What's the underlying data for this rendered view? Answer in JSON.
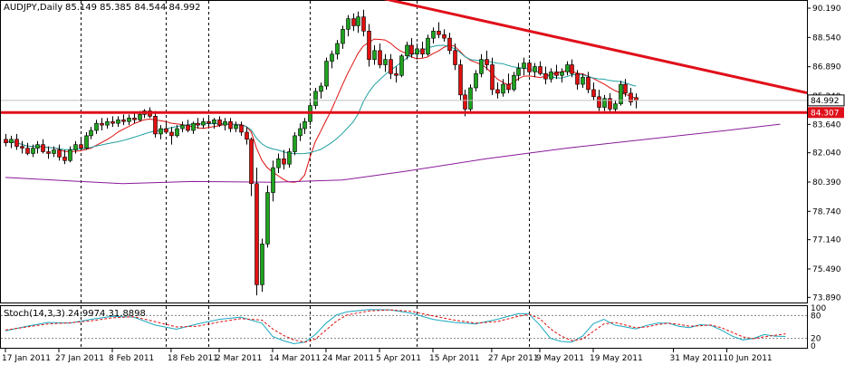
{
  "window": {
    "symbol_label": "AUDJPY,Daily",
    "ohlc_label": "85.149 85.385 84.544 84.992",
    "stoch_label": "Stoch(14,3,3) 24.9974 31.8898"
  },
  "colors": {
    "bull": "#1fa31f",
    "bear": "#e01010",
    "ma_fast": "#e01010",
    "ma_mid": "#20a0a0",
    "ma_slow": "#8a1a9a",
    "trend": "#e0101a",
    "stoch_main": "#1aa8c0",
    "stoch_signal": "#e01010"
  },
  "chart_data": {
    "type": "candlestick",
    "title": "AUDJPY,Daily",
    "ylim": [
      73.6,
      90.6
    ],
    "y_ticks": [
      "90.190",
      "88.540",
      "86.890",
      "85.240",
      "83.640",
      "82.040",
      "80.390",
      "78.740",
      "77.140",
      "75.490",
      "73.890"
    ],
    "x_labels": [
      "17 Jan 2011",
      "27 Jan 2011",
      "8 Feb 2011",
      "18 Feb 2011",
      "2 Mar 2011",
      "14 Mar 2011",
      "24 Mar 2011",
      "5 Apr 2011",
      "15 Apr 2011",
      "27 Apr 2011",
      "9 May 2011",
      "19 May 2011",
      "31 May 2011",
      "10 Jun 2011"
    ],
    "period_separators": [
      "2011-01-26",
      "2011-02-17",
      "2011-03-01",
      "2011-03-28",
      "2011-04-27",
      "2011-05-30"
    ],
    "last_price": "84.992",
    "horizontal_level": {
      "value": 84.307,
      "label": "84.307"
    },
    "trendline": {
      "from": {
        "index": 70,
        "value": 90.78
      },
      "to": {
        "index": 145,
        "value": 85.75
      }
    },
    "ma_slow": [
      [
        0,
        80.65
      ],
      [
        12,
        80.45
      ],
      [
        22,
        80.3
      ],
      [
        35,
        80.42
      ],
      [
        50,
        80.38
      ],
      [
        63,
        80.5
      ],
      [
        75,
        81.0
      ],
      [
        90,
        81.7
      ],
      [
        105,
        82.3
      ],
      [
        120,
        82.8
      ],
      [
        135,
        83.3
      ],
      [
        145,
        83.65
      ]
    ],
    "candles": [
      {
        "o": 82.8,
        "h": 83.1,
        "l": 82.4,
        "c": 82.6
      },
      {
        "o": 82.6,
        "h": 83.0,
        "l": 82.3,
        "c": 82.8
      },
      {
        "o": 82.8,
        "h": 83.1,
        "l": 82.2,
        "c": 82.4
      },
      {
        "o": 82.4,
        "h": 82.7,
        "l": 82.0,
        "c": 82.3
      },
      {
        "o": 82.3,
        "h": 82.6,
        "l": 81.9,
        "c": 82.0
      },
      {
        "o": 82.0,
        "h": 82.5,
        "l": 81.8,
        "c": 82.3
      },
      {
        "o": 82.3,
        "h": 82.7,
        "l": 82.0,
        "c": 82.5
      },
      {
        "o": 82.5,
        "h": 82.8,
        "l": 82.0,
        "c": 82.1
      },
      {
        "o": 82.1,
        "h": 82.4,
        "l": 81.7,
        "c": 82.0
      },
      {
        "o": 82.0,
        "h": 82.4,
        "l": 81.8,
        "c": 82.2
      },
      {
        "o": 82.2,
        "h": 82.5,
        "l": 81.6,
        "c": 81.8
      },
      {
        "o": 81.8,
        "h": 82.2,
        "l": 81.4,
        "c": 81.6
      },
      {
        "o": 81.6,
        "h": 82.4,
        "l": 81.5,
        "c": 82.2
      },
      {
        "o": 82.2,
        "h": 82.7,
        "l": 82.0,
        "c": 82.5
      },
      {
        "o": 82.5,
        "h": 82.9,
        "l": 82.2,
        "c": 82.3
      },
      {
        "o": 82.3,
        "h": 83.2,
        "l": 82.2,
        "c": 83.0
      },
      {
        "o": 83.0,
        "h": 83.5,
        "l": 82.8,
        "c": 83.3
      },
      {
        "o": 83.3,
        "h": 83.9,
        "l": 83.1,
        "c": 83.7
      },
      {
        "o": 83.7,
        "h": 84.0,
        "l": 83.3,
        "c": 83.6
      },
      {
        "o": 83.6,
        "h": 84.0,
        "l": 83.4,
        "c": 83.8
      },
      {
        "o": 83.8,
        "h": 84.1,
        "l": 83.5,
        "c": 83.7
      },
      {
        "o": 83.7,
        "h": 84.1,
        "l": 83.5,
        "c": 83.9
      },
      {
        "o": 83.9,
        "h": 84.2,
        "l": 83.6,
        "c": 83.8
      },
      {
        "o": 83.8,
        "h": 84.2,
        "l": 83.6,
        "c": 84.0
      },
      {
        "o": 84.0,
        "h": 84.3,
        "l": 83.7,
        "c": 83.9
      },
      {
        "o": 83.9,
        "h": 84.4,
        "l": 83.8,
        "c": 84.2
      },
      {
        "o": 84.2,
        "h": 84.5,
        "l": 84.0,
        "c": 84.4
      },
      {
        "o": 84.4,
        "h": 84.6,
        "l": 84.0,
        "c": 84.1
      },
      {
        "o": 84.1,
        "h": 84.4,
        "l": 82.9,
        "c": 83.1
      },
      {
        "o": 83.1,
        "h": 83.6,
        "l": 82.8,
        "c": 83.4
      },
      {
        "o": 83.4,
        "h": 83.8,
        "l": 83.1,
        "c": 83.2
      },
      {
        "o": 83.2,
        "h": 83.5,
        "l": 82.5,
        "c": 83.0
      },
      {
        "o": 83.0,
        "h": 83.6,
        "l": 82.9,
        "c": 83.4
      },
      {
        "o": 83.4,
        "h": 83.8,
        "l": 83.2,
        "c": 83.6
      },
      {
        "o": 83.6,
        "h": 83.9,
        "l": 83.2,
        "c": 83.3
      },
      {
        "o": 83.3,
        "h": 83.8,
        "l": 83.1,
        "c": 83.7
      },
      {
        "o": 83.7,
        "h": 84.0,
        "l": 83.4,
        "c": 83.6
      },
      {
        "o": 83.6,
        "h": 84.0,
        "l": 83.4,
        "c": 83.8
      },
      {
        "o": 83.8,
        "h": 84.1,
        "l": 83.5,
        "c": 83.7
      },
      {
        "o": 83.7,
        "h": 84.0,
        "l": 83.4,
        "c": 83.9
      },
      {
        "o": 83.9,
        "h": 84.1,
        "l": 83.5,
        "c": 83.6
      },
      {
        "o": 83.6,
        "h": 84.0,
        "l": 83.3,
        "c": 83.8
      },
      {
        "o": 83.8,
        "h": 84.0,
        "l": 83.2,
        "c": 83.4
      },
      {
        "o": 83.4,
        "h": 83.8,
        "l": 83.2,
        "c": 83.6
      },
      {
        "o": 83.6,
        "h": 83.8,
        "l": 83.0,
        "c": 83.2
      },
      {
        "o": 83.2,
        "h": 83.5,
        "l": 82.5,
        "c": 82.8
      },
      {
        "o": 82.8,
        "h": 82.9,
        "l": 79.6,
        "c": 80.3
      },
      {
        "o": 80.3,
        "h": 81.2,
        "l": 74.0,
        "c": 74.6
      },
      {
        "o": 74.6,
        "h": 77.2,
        "l": 74.2,
        "c": 76.9
      },
      {
        "o": 76.9,
        "h": 80.2,
        "l": 76.7,
        "c": 79.8
      },
      {
        "o": 79.8,
        "h": 81.6,
        "l": 79.3,
        "c": 81.2
      },
      {
        "o": 81.2,
        "h": 82.0,
        "l": 80.9,
        "c": 81.7
      },
      {
        "o": 81.7,
        "h": 82.2,
        "l": 81.1,
        "c": 81.4
      },
      {
        "o": 81.4,
        "h": 82.3,
        "l": 81.2,
        "c": 82.1
      },
      {
        "o": 82.1,
        "h": 83.2,
        "l": 81.9,
        "c": 83.0
      },
      {
        "o": 83.0,
        "h": 83.7,
        "l": 82.7,
        "c": 83.4
      },
      {
        "o": 83.4,
        "h": 84.0,
        "l": 83.1,
        "c": 83.8
      },
      {
        "o": 83.8,
        "h": 84.9,
        "l": 83.6,
        "c": 84.7
      },
      {
        "o": 84.7,
        "h": 85.7,
        "l": 84.5,
        "c": 85.5
      },
      {
        "o": 85.5,
        "h": 86.0,
        "l": 85.1,
        "c": 85.8
      },
      {
        "o": 85.8,
        "h": 87.4,
        "l": 85.6,
        "c": 87.2
      },
      {
        "o": 87.2,
        "h": 87.8,
        "l": 86.8,
        "c": 87.6
      },
      {
        "o": 87.6,
        "h": 88.4,
        "l": 87.3,
        "c": 88.2
      },
      {
        "o": 88.2,
        "h": 89.2,
        "l": 87.9,
        "c": 89.0
      },
      {
        "o": 89.0,
        "h": 89.8,
        "l": 88.6,
        "c": 89.6
      },
      {
        "o": 89.6,
        "h": 89.9,
        "l": 88.9,
        "c": 89.2
      },
      {
        "o": 89.2,
        "h": 90.0,
        "l": 88.8,
        "c": 89.7
      },
      {
        "o": 89.7,
        "h": 90.1,
        "l": 88.6,
        "c": 88.9
      },
      {
        "o": 88.9,
        "h": 89.3,
        "l": 86.9,
        "c": 87.3
      },
      {
        "o": 87.3,
        "h": 88.1,
        "l": 87.0,
        "c": 87.8
      },
      {
        "o": 87.8,
        "h": 88.2,
        "l": 86.8,
        "c": 87.0
      },
      {
        "o": 87.0,
        "h": 87.6,
        "l": 86.6,
        "c": 87.3
      },
      {
        "o": 87.3,
        "h": 87.6,
        "l": 86.2,
        "c": 86.5
      },
      {
        "o": 86.5,
        "h": 86.9,
        "l": 86.0,
        "c": 86.4
      },
      {
        "o": 86.4,
        "h": 87.6,
        "l": 86.3,
        "c": 87.5
      },
      {
        "o": 87.5,
        "h": 88.3,
        "l": 87.3,
        "c": 88.1
      },
      {
        "o": 88.1,
        "h": 88.5,
        "l": 87.4,
        "c": 87.6
      },
      {
        "o": 87.6,
        "h": 88.2,
        "l": 87.3,
        "c": 87.9
      },
      {
        "o": 87.9,
        "h": 88.3,
        "l": 87.4,
        "c": 87.6
      },
      {
        "o": 87.6,
        "h": 88.7,
        "l": 87.5,
        "c": 88.5
      },
      {
        "o": 88.5,
        "h": 89.1,
        "l": 88.2,
        "c": 88.9
      },
      {
        "o": 88.9,
        "h": 89.4,
        "l": 88.5,
        "c": 88.7
      },
      {
        "o": 88.7,
        "h": 89.0,
        "l": 88.3,
        "c": 88.5
      },
      {
        "o": 88.5,
        "h": 88.8,
        "l": 87.6,
        "c": 87.8
      },
      {
        "o": 87.8,
        "h": 88.2,
        "l": 86.7,
        "c": 87.0
      },
      {
        "o": 87.0,
        "h": 87.3,
        "l": 85.0,
        "c": 85.3
      },
      {
        "o": 85.3,
        "h": 85.6,
        "l": 84.1,
        "c": 84.5
      },
      {
        "o": 84.5,
        "h": 85.9,
        "l": 84.3,
        "c": 85.7
      },
      {
        "o": 85.7,
        "h": 86.7,
        "l": 85.5,
        "c": 86.5
      },
      {
        "o": 86.5,
        "h": 87.6,
        "l": 86.3,
        "c": 87.3
      },
      {
        "o": 87.3,
        "h": 87.8,
        "l": 86.7,
        "c": 87.0
      },
      {
        "o": 87.0,
        "h": 87.4,
        "l": 85.3,
        "c": 85.6
      },
      {
        "o": 85.6,
        "h": 86.0,
        "l": 85.1,
        "c": 85.4
      },
      {
        "o": 85.4,
        "h": 86.2,
        "l": 85.2,
        "c": 85.9
      },
      {
        "o": 85.9,
        "h": 86.5,
        "l": 85.4,
        "c": 85.6
      },
      {
        "o": 85.6,
        "h": 86.6,
        "l": 85.5,
        "c": 86.4
      },
      {
        "o": 86.4,
        "h": 87.1,
        "l": 86.1,
        "c": 86.8
      },
      {
        "o": 86.8,
        "h": 87.4,
        "l": 86.4,
        "c": 87.1
      },
      {
        "o": 87.1,
        "h": 87.3,
        "l": 86.4,
        "c": 86.6
      },
      {
        "o": 86.6,
        "h": 87.1,
        "l": 86.3,
        "c": 86.9
      },
      {
        "o": 86.9,
        "h": 87.2,
        "l": 86.4,
        "c": 86.5
      },
      {
        "o": 86.5,
        "h": 86.9,
        "l": 85.9,
        "c": 86.2
      },
      {
        "o": 86.2,
        "h": 86.8,
        "l": 86.0,
        "c": 86.6
      },
      {
        "o": 86.6,
        "h": 87.0,
        "l": 86.2,
        "c": 86.4
      },
      {
        "o": 86.4,
        "h": 86.8,
        "l": 86.0,
        "c": 86.6
      },
      {
        "o": 86.6,
        "h": 87.2,
        "l": 86.4,
        "c": 87.0
      },
      {
        "o": 87.0,
        "h": 87.3,
        "l": 86.3,
        "c": 86.5
      },
      {
        "o": 86.5,
        "h": 86.7,
        "l": 85.6,
        "c": 85.9
      },
      {
        "o": 85.9,
        "h": 86.5,
        "l": 85.7,
        "c": 86.3
      },
      {
        "o": 86.3,
        "h": 86.6,
        "l": 85.4,
        "c": 85.6
      },
      {
        "o": 85.6,
        "h": 86.0,
        "l": 85.0,
        "c": 85.2
      },
      {
        "o": 85.2,
        "h": 85.6,
        "l": 84.4,
        "c": 84.6
      },
      {
        "o": 84.6,
        "h": 85.3,
        "l": 84.4,
        "c": 85.1
      },
      {
        "o": 85.1,
        "h": 85.4,
        "l": 84.3,
        "c": 84.5
      },
      {
        "o": 84.5,
        "h": 85.0,
        "l": 84.3,
        "c": 84.8
      },
      {
        "o": 84.8,
        "h": 86.1,
        "l": 84.7,
        "c": 85.9
      },
      {
        "o": 85.9,
        "h": 86.2,
        "l": 85.2,
        "c": 85.4
      },
      {
        "o": 85.4,
        "h": 85.7,
        "l": 84.7,
        "c": 84.9
      },
      {
        "o": 85.149,
        "h": 85.385,
        "l": 84.544,
        "c": 84.992
      }
    ]
  },
  "stochastic": {
    "ylim": [
      0,
      100
    ],
    "levels": [
      "100",
      "80",
      "20",
      "0"
    ],
    "main": [
      [
        0,
        40
      ],
      [
        4,
        52
      ],
      [
        8,
        62
      ],
      [
        12,
        60
      ],
      [
        16,
        70
      ],
      [
        20,
        78
      ],
      [
        24,
        76
      ],
      [
        28,
        55
      ],
      [
        32,
        44
      ],
      [
        36,
        58
      ],
      [
        40,
        70
      ],
      [
        44,
        76
      ],
      [
        48,
        60
      ],
      [
        50,
        25
      ],
      [
        52,
        14
      ],
      [
        54,
        6
      ],
      [
        56,
        10
      ],
      [
        58,
        30
      ],
      [
        60,
        60
      ],
      [
        62,
        82
      ],
      [
        64,
        90
      ],
      [
        68,
        96
      ],
      [
        72,
        95
      ],
      [
        76,
        86
      ],
      [
        80,
        70
      ],
      [
        84,
        62
      ],
      [
        88,
        58
      ],
      [
        92,
        70
      ],
      [
        96,
        85
      ],
      [
        98,
        84
      ],
      [
        100,
        55
      ],
      [
        102,
        20
      ],
      [
        104,
        12
      ],
      [
        106,
        10
      ],
      [
        108,
        26
      ],
      [
        110,
        58
      ],
      [
        112,
        70
      ],
      [
        114,
        55
      ],
      [
        116,
        50
      ],
      [
        118,
        45
      ],
      [
        120,
        54
      ],
      [
        122,
        60
      ],
      [
        124,
        60
      ],
      [
        126,
        52
      ],
      [
        128,
        48
      ],
      [
        130,
        56
      ],
      [
        132,
        54
      ],
      [
        134,
        42
      ],
      [
        136,
        26
      ],
      [
        138,
        16
      ],
      [
        140,
        20
      ],
      [
        142,
        30
      ],
      [
        144,
        26
      ],
      [
        146,
        25
      ]
    ],
    "signal": [
      [
        0,
        42
      ],
      [
        4,
        50
      ],
      [
        8,
        58
      ],
      [
        12,
        61
      ],
      [
        16,
        66
      ],
      [
        20,
        74
      ],
      [
        24,
        77
      ],
      [
        28,
        64
      ],
      [
        32,
        50
      ],
      [
        36,
        52
      ],
      [
        40,
        63
      ],
      [
        44,
        72
      ],
      [
        48,
        68
      ],
      [
        50,
        45
      ],
      [
        52,
        28
      ],
      [
        54,
        16
      ],
      [
        56,
        10
      ],
      [
        58,
        18
      ],
      [
        60,
        42
      ],
      [
        62,
        66
      ],
      [
        64,
        82
      ],
      [
        68,
        92
      ],
      [
        72,
        95
      ],
      [
        76,
        91
      ],
      [
        80,
        79
      ],
      [
        84,
        68
      ],
      [
        88,
        60
      ],
      [
        92,
        64
      ],
      [
        96,
        78
      ],
      [
        98,
        83
      ],
      [
        100,
        72
      ],
      [
        102,
        45
      ],
      [
        104,
        26
      ],
      [
        106,
        14
      ],
      [
        108,
        18
      ],
      [
        110,
        38
      ],
      [
        112,
        58
      ],
      [
        114,
        62
      ],
      [
        116,
        55
      ],
      [
        118,
        48
      ],
      [
        120,
        50
      ],
      [
        122,
        56
      ],
      [
        124,
        60
      ],
      [
        126,
        57
      ],
      [
        128,
        52
      ],
      [
        130,
        53
      ],
      [
        132,
        55
      ],
      [
        134,
        48
      ],
      [
        136,
        36
      ],
      [
        138,
        24
      ],
      [
        140,
        19
      ],
      [
        142,
        24
      ],
      [
        144,
        28
      ],
      [
        146,
        32
      ]
    ]
  }
}
